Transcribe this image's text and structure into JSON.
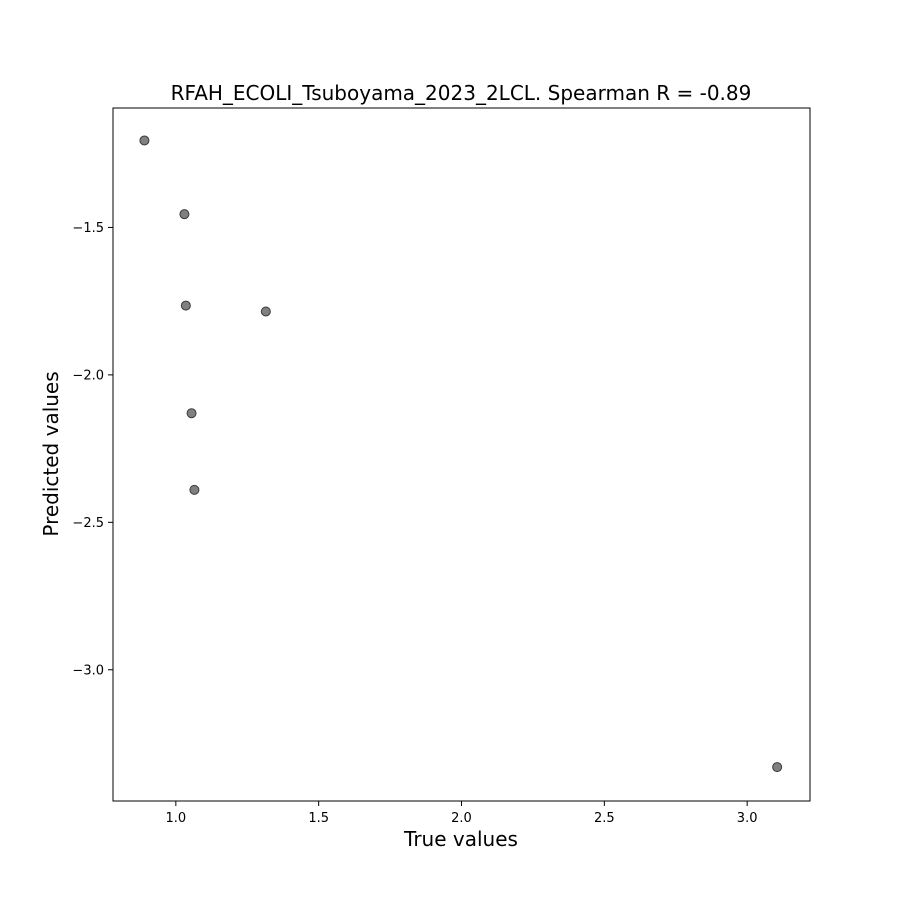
{
  "chart_data": {
    "type": "scatter",
    "title": "RFAH_ECOLI_Tsuboyama_2023_2LCL. Spearman R = -0.89",
    "xlabel": "True values",
    "ylabel": "Predicted values",
    "xlim": [
      0.78,
      3.22
    ],
    "ylim": [
      -3.445,
      -1.095
    ],
    "xticks": [
      1.0,
      1.5,
      2.0,
      2.5,
      3.0
    ],
    "yticks": [
      -1.5,
      -2.0,
      -2.5,
      -3.0
    ],
    "xtick_labels": [
      "1.0",
      "1.5",
      "2.0",
      "2.5",
      "3.0"
    ],
    "ytick_labels": [
      "−1.5",
      "−2.0",
      "−2.5",
      "−3.0"
    ],
    "grid": false,
    "point_color": "#808080",
    "point_edge_color": "#3a3a3a",
    "points": [
      {
        "x": 0.89,
        "y": -1.205
      },
      {
        "x": 1.03,
        "y": -1.455
      },
      {
        "x": 1.035,
        "y": -1.765
      },
      {
        "x": 1.315,
        "y": -1.785
      },
      {
        "x": 1.055,
        "y": -2.13
      },
      {
        "x": 1.065,
        "y": -2.39
      },
      {
        "x": 3.105,
        "y": -3.33
      }
    ]
  }
}
